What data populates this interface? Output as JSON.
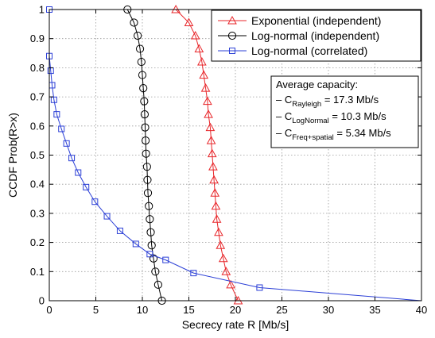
{
  "chart_data": {
    "type": "line",
    "xlabel": "Secrecy rate R [Mb/s]",
    "ylabel": "CCDF Prob(R>x)",
    "xlim": [
      0,
      40
    ],
    "ylim": [
      0,
      1
    ],
    "x_ticks": [
      0,
      5,
      10,
      15,
      20,
      25,
      30,
      35,
      40
    ],
    "y_ticks": [
      0,
      0.1,
      0.2,
      0.3,
      0.4,
      0.5,
      0.6,
      0.7,
      0.8,
      0.9,
      1
    ],
    "x_tick_labels": [
      "0",
      "5",
      "10",
      "15",
      "20",
      "25",
      "30",
      "35",
      "40"
    ],
    "y_tick_labels": [
      "0",
      "0.1",
      "0.2",
      "0.3",
      "0.4",
      "0.5",
      "0.6",
      "0.7",
      "0.8",
      "0.9",
      "1"
    ],
    "grid": true,
    "legend_position": "top-right",
    "series": [
      {
        "name": "Exponential (independent)",
        "color": "#e8262a",
        "marker": "triangle",
        "x": [
          13.6,
          15.0,
          15.7,
          16.1,
          16.4,
          16.6,
          16.8,
          17.0,
          17.1,
          17.3,
          17.4,
          17.5,
          17.6,
          17.7,
          17.8,
          17.9,
          18.0,
          18.2,
          18.4,
          18.7,
          19.0,
          19.5,
          20.3
        ],
        "y": [
          1.0,
          0.955,
          0.91,
          0.865,
          0.82,
          0.775,
          0.73,
          0.685,
          0.64,
          0.595,
          0.55,
          0.505,
          0.46,
          0.415,
          0.37,
          0.325,
          0.28,
          0.235,
          0.19,
          0.145,
          0.1,
          0.055,
          0.0
        ]
      },
      {
        "name": "Log-normal (independent)",
        "color": "#000000",
        "marker": "circle",
        "x": [
          8.4,
          9.1,
          9.5,
          9.75,
          9.9,
          10.0,
          10.1,
          10.2,
          10.25,
          10.3,
          10.35,
          10.4,
          10.5,
          10.55,
          10.6,
          10.7,
          10.8,
          10.9,
          11.0,
          11.2,
          11.4,
          11.7,
          12.1
        ],
        "y": [
          1.0,
          0.955,
          0.91,
          0.865,
          0.82,
          0.775,
          0.73,
          0.685,
          0.64,
          0.595,
          0.55,
          0.505,
          0.46,
          0.415,
          0.37,
          0.325,
          0.28,
          0.235,
          0.19,
          0.145,
          0.1,
          0.055,
          0.0
        ]
      },
      {
        "name": "Log-normal (correlated)",
        "color": "#2b3fd6",
        "marker": "square",
        "x": [
          0.0,
          0.0,
          0.15,
          0.3,
          0.5,
          0.8,
          1.3,
          1.85,
          2.4,
          3.1,
          3.95,
          4.9,
          6.2,
          7.6,
          9.3,
          10.8,
          12.5,
          15.5,
          22.6,
          40.0
        ],
        "y": [
          1.0,
          0.84,
          0.79,
          0.74,
          0.69,
          0.64,
          0.59,
          0.54,
          0.49,
          0.44,
          0.39,
          0.34,
          0.29,
          0.24,
          0.195,
          0.16,
          0.14,
          0.095,
          0.045,
          0.0
        ],
        "marker_count": 19
      }
    ],
    "annotation": {
      "title": "Average capacity:",
      "lines": [
        {
          "prefix": "– C",
          "sub": "Rayleigh",
          "value": " = 17.3 Mb/s"
        },
        {
          "prefix": "– C",
          "sub": "LogNormal",
          "value": " = 10.3 Mb/s"
        },
        {
          "prefix": "– C",
          "sub": "Freq+spatial",
          "value": " = 5.34 Mb/s"
        }
      ]
    }
  }
}
